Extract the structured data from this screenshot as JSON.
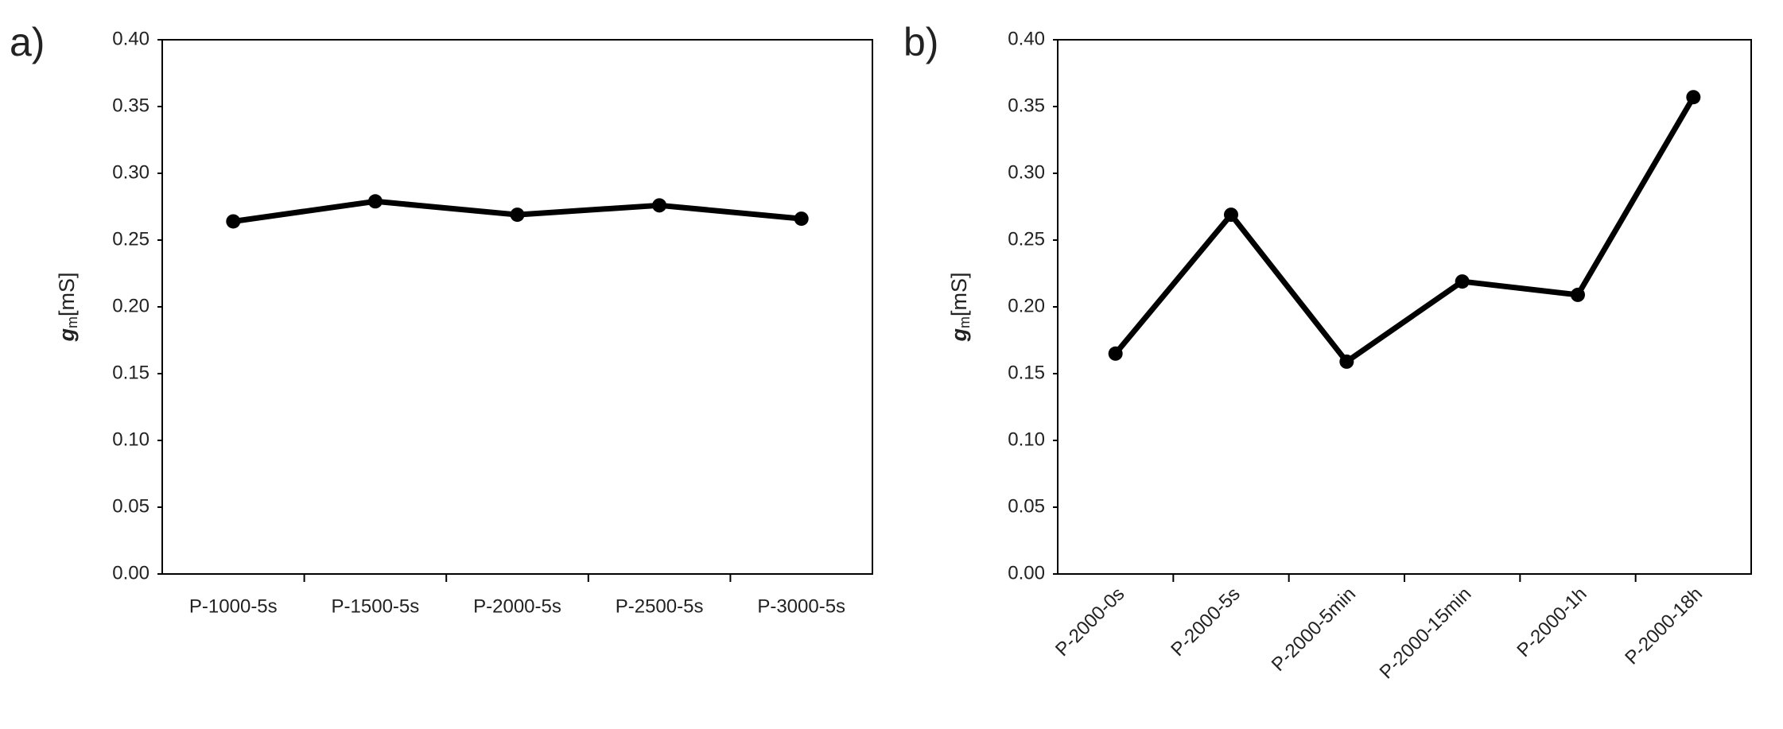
{
  "chart_data": [
    {
      "type": "line",
      "panel_label": "a)",
      "y_label": {
        "symbol": "g",
        "subscript": "m",
        "unit": "[mS]"
      },
      "categories": [
        "P-1000-5s",
        "P-1500-5s",
        "P-2000-5s",
        "P-2500-5s",
        "P-3000-5s"
      ],
      "values": [
        0.264,
        0.279,
        0.269,
        0.276,
        0.266
      ],
      "color": "#000000",
      "ylim": [
        0,
        0.4
      ],
      "yticks": [
        {
          "value": 0,
          "label": "0.00"
        },
        0.05,
        {
          "value": 0.1,
          "label": "0.10"
        },
        0.15,
        {
          "value": 0.2,
          "label": "0.20"
        },
        0.25,
        {
          "value": 0.3,
          "label": "0.30"
        },
        0.35,
        {
          "value": 0.4,
          "label": "0.40"
        }
      ],
      "grid": false
    },
    {
      "type": "line",
      "panel_label": "b)",
      "y_label": {
        "symbol": "g",
        "subscript": "m",
        "unit": "[mS]"
      },
      "categories": [
        "P-2000-0s",
        "P-2000-5s",
        "P-2000-5min",
        "P-2000-15min",
        "P-2000-1h",
        "P-2000-18h"
      ],
      "values": [
        0.165,
        0.269,
        0.159,
        0.219,
        0.209,
        0.357
      ],
      "color": "#000000",
      "ylim": [
        0,
        0.4
      ],
      "yticks": [
        {
          "value": 0,
          "label": "0.00"
        },
        0.05,
        {
          "value": 0.1,
          "label": "0.10"
        },
        0.15,
        {
          "value": 0.2,
          "label": "0.20"
        },
        0.25,
        {
          "value": 0.3,
          "label": "0.30"
        },
        0.35,
        {
          "value": 0.4,
          "label": "0.40"
        }
      ],
      "grid": false
    }
  ]
}
